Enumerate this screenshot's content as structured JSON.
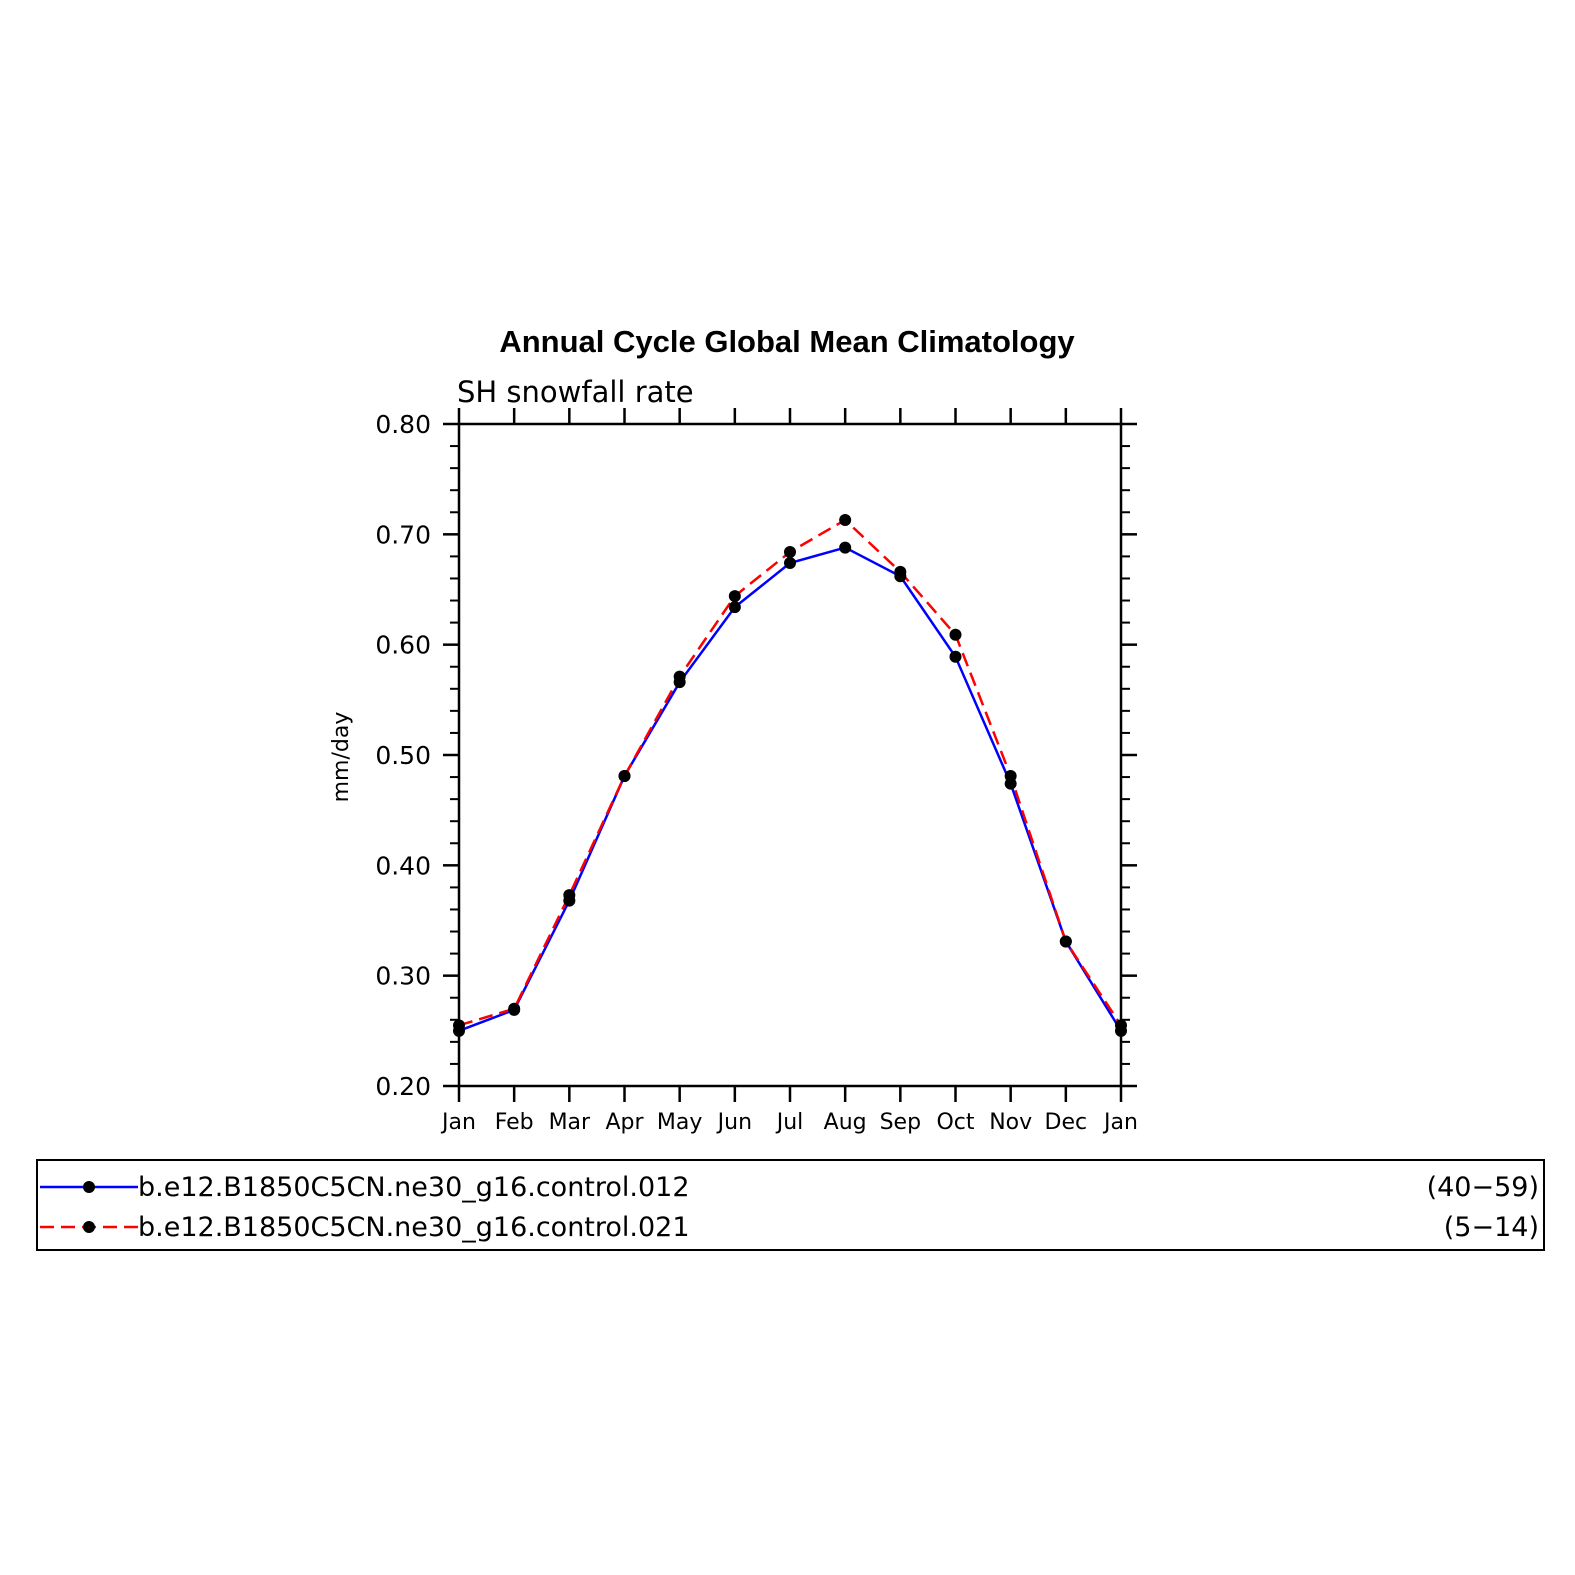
{
  "chart_data": {
    "type": "line",
    "title": "Annual Cycle Global Mean Climatology",
    "subtitle": "SH snowfall rate",
    "ylabel": "mm/day",
    "xlabel": "",
    "ylim": [
      0.2,
      0.8
    ],
    "yticks": [
      "0.20",
      "0.30",
      "0.40",
      "0.50",
      "0.60",
      "0.70",
      "0.80"
    ],
    "categories": [
      "Jan",
      "Feb",
      "Mar",
      "Apr",
      "May",
      "Jun",
      "Jul",
      "Aug",
      "Sep",
      "Oct",
      "Nov",
      "Dec",
      "Jan"
    ],
    "grid": false,
    "legend_position": "bottom",
    "series": [
      {
        "name": "b.e12.B1850C5CN.ne30_g16.control.012",
        "years": "(40−59)",
        "color": "#0000ff",
        "dash": "solid",
        "values": [
          0.25,
          0.269,
          0.368,
          0.481,
          0.566,
          0.634,
          0.674,
          0.688,
          0.662,
          0.589,
          0.474,
          0.331,
          0.25
        ]
      },
      {
        "name": "b.e12.B1850C5CN.ne30_g16.control.021",
        "years": "(5−14)",
        "color": "#ff0000",
        "dash": "dashed",
        "values": [
          0.255,
          0.27,
          0.373,
          0.481,
          0.571,
          0.644,
          0.684,
          0.713,
          0.666,
          0.609,
          0.481,
          0.331,
          0.255
        ]
      }
    ]
  }
}
